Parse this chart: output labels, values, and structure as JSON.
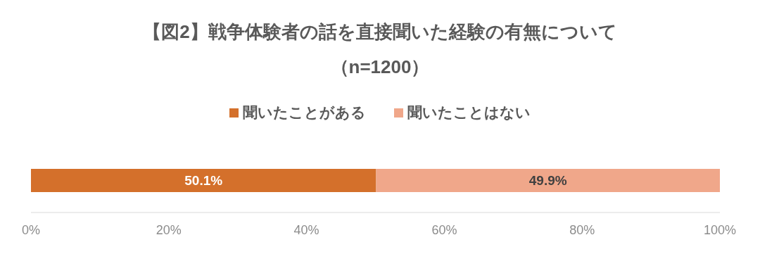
{
  "chart_data": {
    "type": "bar",
    "orientation": "horizontal",
    "stacked": true,
    "title": "【図2】戦争体験者の話を直接聞いた経験の有無について",
    "subtitle": "（n=1200）",
    "categories": [
      null
    ],
    "series": [
      {
        "name": "聞いたことがある",
        "color": "#d4702b",
        "values": [
          50.1
        ],
        "value_labels": [
          "50.1%"
        ]
      },
      {
        "name": "聞いたことはない",
        "color": "#f0a78a",
        "values": [
          49.9
        ],
        "value_labels": [
          "49.9%"
        ]
      }
    ],
    "xlim": [
      0,
      100
    ],
    "xticks": [
      {
        "value": 0,
        "label": "0%"
      },
      {
        "value": 20,
        "label": "20%"
      },
      {
        "value": 40,
        "label": "40%"
      },
      {
        "value": 60,
        "label": "60%"
      },
      {
        "value": 80,
        "label": "80%"
      },
      {
        "value": 100,
        "label": "100%"
      }
    ],
    "legend": "top",
    "grid": false
  }
}
